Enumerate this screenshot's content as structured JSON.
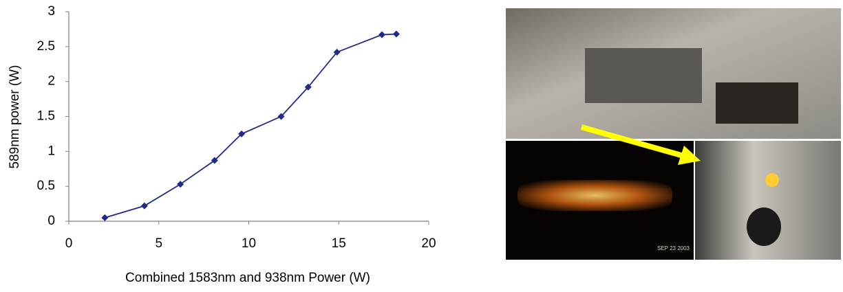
{
  "chart_data": {
    "type": "line",
    "xlabel": "Combined 1583nm and 938nm Power (W)",
    "ylabel": "589nm power (W)",
    "x": [
      2,
      4.2,
      6.2,
      8.1,
      9.6,
      11.8,
      13.3,
      14.9,
      17.4,
      18.2
    ],
    "values": [
      0.05,
      0.22,
      0.53,
      0.87,
      1.25,
      1.5,
      1.92,
      2.42,
      2.67,
      2.68
    ],
    "color": "#1f2a8a",
    "xlim": [
      0,
      20
    ],
    "xticks": [
      0,
      5,
      10,
      15,
      20
    ],
    "ylim": [
      0,
      3
    ],
    "yticks": [
      0,
      0.5,
      1,
      1.5,
      2,
      2.5,
      3
    ],
    "grid": false,
    "annotations": [
      "SEP 23 2003"
    ]
  }
}
